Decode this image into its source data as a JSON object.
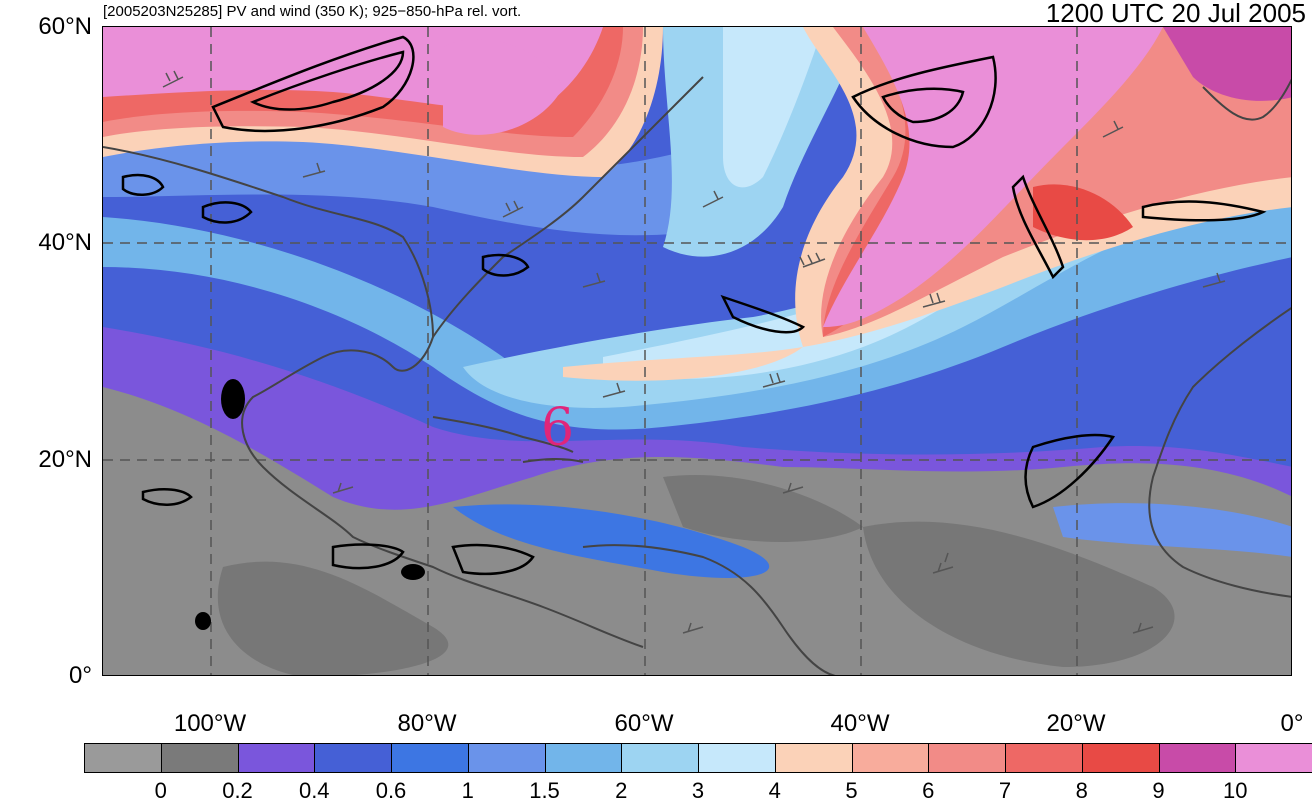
{
  "title_left": "[2005203N25285] PV and wind (350 K); 925−850-hPa rel. vort.",
  "title_right": "1200 UTC 20 Jul 2005",
  "lat_labels": [
    "60°N",
    "40°N",
    "20°N",
    "0°"
  ],
  "lon_labels": [
    "100°W",
    "80°W",
    "60°W",
    "40°W",
    "20°W",
    "0°"
  ],
  "storm_symbol": "6",
  "colorbar": {
    "colors": [
      "#9a9a9a",
      "#7a7a7a",
      "#7a56dc",
      "#4560d6",
      "#3d76e3",
      "#6a93ea",
      "#72b5ea",
      "#9dd4f2",
      "#c6e8fb",
      "#fbd2b8",
      "#f8ac9c",
      "#f28b87",
      "#ee6865",
      "#e84a45",
      "#c84ba8",
      "#ea8fd8"
    ],
    "labels": [
      "0",
      "0.2",
      "0.4",
      "0.6",
      "1",
      "1.5",
      "2",
      "3",
      "4",
      "5",
      "6",
      "7",
      "8",
      "9",
      "10"
    ]
  },
  "legend_colors": {
    "grid": "#555555",
    "coastline": "#444444",
    "vorticity_contour": "#000000",
    "storm_symbol": "#e0257a"
  }
}
